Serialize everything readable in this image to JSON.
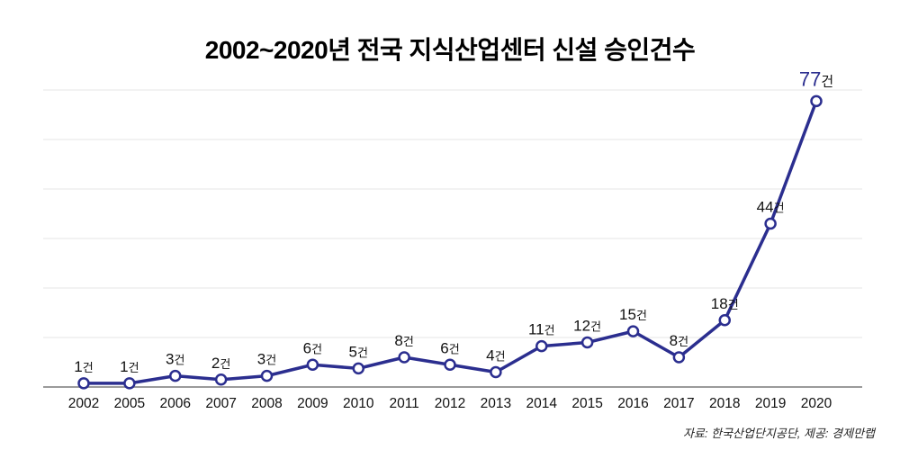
{
  "title": "2002~2020년 전국 지식산업센터 신설 승인건수",
  "source": "자료: 한국산업단지공단, 제공: 경제만랩",
  "colors": {
    "line": "#2b2e8f",
    "highlight": "#2b2e8f",
    "marker_fill": "#ffffff",
    "grid": "#e5e5e5",
    "axis": "#9a9a9a",
    "label": "#111111",
    "tick": "#111111"
  },
  "chart_data": {
    "type": "line",
    "title": "2002~2020년 전국 지식산업센터 신설 승인건수",
    "unit": "건",
    "categories": [
      "2002",
      "2005",
      "2006",
      "2007",
      "2008",
      "2009",
      "2010",
      "2011",
      "2012",
      "2013",
      "2014",
      "2015",
      "2016",
      "2017",
      "2018",
      "2019",
      "2020"
    ],
    "values": [
      1,
      1,
      3,
      2,
      3,
      6,
      5,
      8,
      6,
      4,
      11,
      12,
      15,
      8,
      18,
      44,
      77
    ],
    "ylim": [
      0,
      80
    ],
    "grid": true,
    "legend": "none",
    "annotations": "value labels above each point, final value emphasized in blue",
    "source_note": "자료: 한국산업단지공단, 제공: 경제만랩"
  }
}
